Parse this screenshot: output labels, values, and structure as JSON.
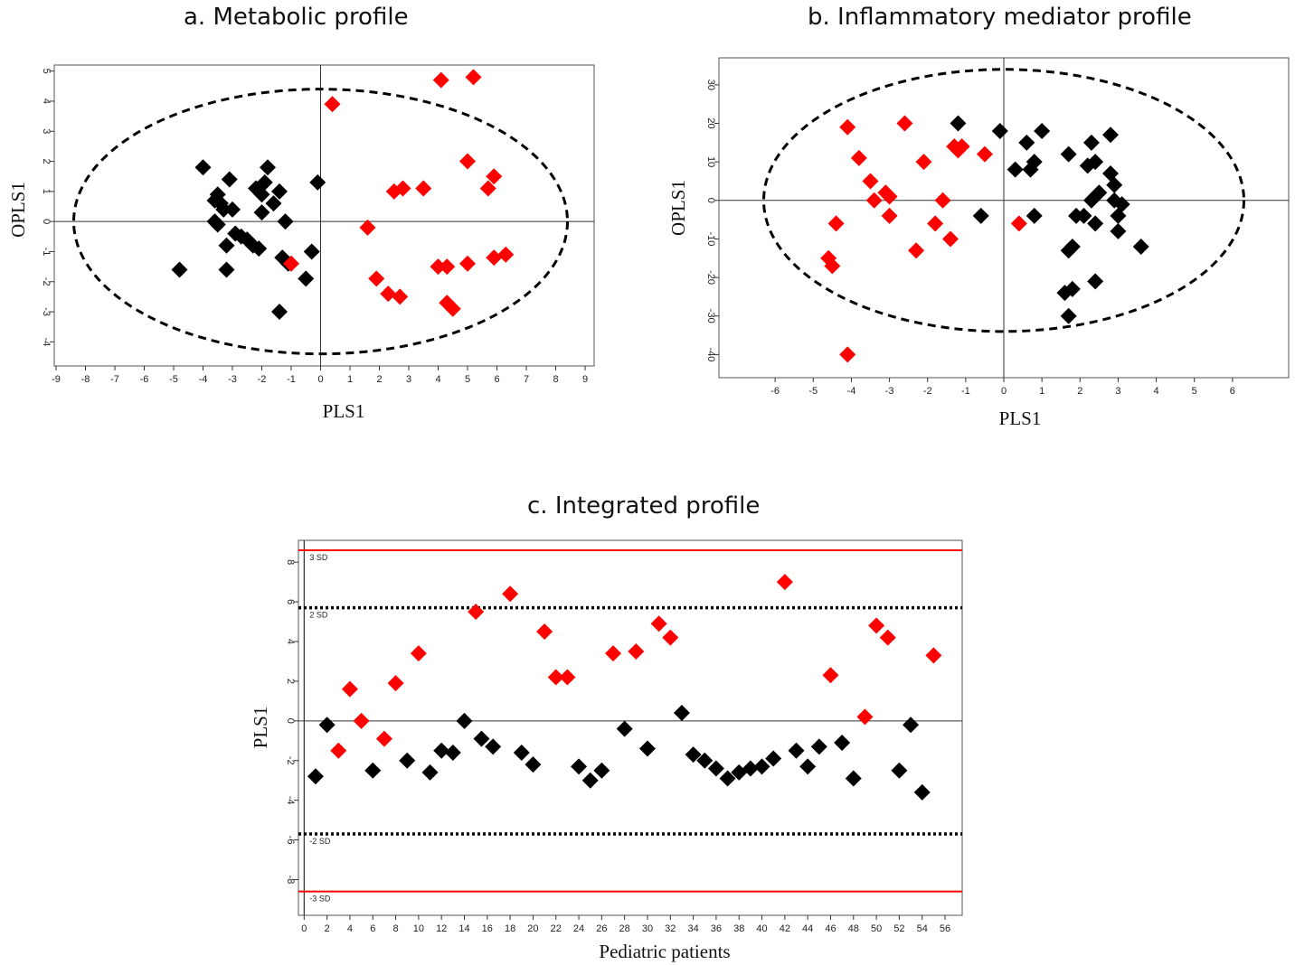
{
  "chart_data": [
    {
      "type": "scatter",
      "title": "a. Metabolic profile",
      "xlabel": "PLS1",
      "ylabel": "OPLS1",
      "xlim": [
        -9,
        9
      ],
      "ylim": [
        -4.8,
        5.2
      ],
      "xticks": [
        -9,
        -8,
        -7,
        -6,
        -5,
        -4,
        -3,
        -2,
        -1,
        0,
        1,
        2,
        3,
        4,
        5,
        6,
        7,
        8,
        9
      ],
      "yticks": [
        -4,
        -3,
        -2,
        -1,
        0,
        1,
        2,
        3,
        4,
        5
      ],
      "ellipse": {
        "rx": 8.4,
        "ry": 4.4
      },
      "colors": {
        "group_black": "#000000",
        "group_red": "#ff0000"
      },
      "series": [
        {
          "color": "black",
          "points": [
            [
              -4.8,
              -1.6
            ],
            [
              -4.0,
              1.8
            ],
            [
              -3.6,
              0.7
            ],
            [
              -3.5,
              0.9
            ],
            [
              -3.4,
              0.6
            ],
            [
              -3.3,
              0.4
            ],
            [
              -3.6,
              0.0
            ],
            [
              -3.5,
              -0.1
            ],
            [
              -3.1,
              1.4
            ],
            [
              -3.0,
              0.4
            ],
            [
              -2.9,
              -0.4
            ],
            [
              -3.2,
              -0.8
            ],
            [
              -3.2,
              -1.6
            ],
            [
              -2.7,
              -0.5
            ],
            [
              -2.5,
              -0.6
            ],
            [
              -2.3,
              -0.8
            ],
            [
              -2.2,
              1.1
            ],
            [
              -2.0,
              0.9
            ],
            [
              -2.0,
              0.3
            ],
            [
              -1.9,
              1.3
            ],
            [
              -1.8,
              1.8
            ],
            [
              -1.6,
              0.6
            ],
            [
              -1.4,
              1.0
            ],
            [
              -1.2,
              0.0
            ],
            [
              -1.3,
              -1.2
            ],
            [
              -1.1,
              -1.4
            ],
            [
              -1.4,
              -3.0
            ],
            [
              -0.5,
              -1.9
            ],
            [
              -0.3,
              -1.0
            ],
            [
              -0.1,
              1.3
            ],
            [
              -2.1,
              -0.9
            ]
          ]
        },
        {
          "color": "red",
          "points": [
            [
              0.4,
              3.9
            ],
            [
              4.1,
              4.7
            ],
            [
              5.2,
              4.8
            ],
            [
              1.6,
              -0.2
            ],
            [
              1.9,
              -1.9
            ],
            [
              2.3,
              -2.4
            ],
            [
              2.7,
              -2.5
            ],
            [
              2.5,
              1.0
            ],
            [
              2.8,
              1.1
            ],
            [
              3.5,
              1.1
            ],
            [
              4.0,
              -1.5
            ],
            [
              4.3,
              -1.5
            ],
            [
              4.3,
              -2.7
            ],
            [
              4.5,
              -2.9
            ],
            [
              5.0,
              2.0
            ],
            [
              5.0,
              -1.4
            ],
            [
              5.7,
              1.1
            ],
            [
              5.9,
              1.5
            ],
            [
              5.9,
              -1.2
            ],
            [
              6.3,
              -1.1
            ],
            [
              -1.0,
              -1.4
            ]
          ]
        }
      ]
    },
    {
      "type": "scatter",
      "title": "b. Inflammatory mediator profile",
      "xlabel": "PLS1",
      "ylabel": "OPLS1",
      "xlim": [
        -7,
        7
      ],
      "ylim": [
        -46,
        37
      ],
      "xticks": [
        -6,
        -5,
        -4,
        -3,
        -2,
        -1,
        0,
        1,
        2,
        3,
        4,
        5,
        6
      ],
      "yticks": [
        -40,
        -30,
        -20,
        -10,
        0,
        10,
        20,
        30
      ],
      "ellipse": {
        "rx": 6.3,
        "ry": 34
      },
      "colors": {
        "group_black": "#000000",
        "group_red": "#ff0000"
      },
      "series": [
        {
          "color": "black",
          "points": [
            [
              -1.2,
              20
            ],
            [
              -0.1,
              18
            ],
            [
              0.3,
              8
            ],
            [
              0.6,
              15
            ],
            [
              0.7,
              8
            ],
            [
              0.8,
              10
            ],
            [
              1.0,
              18
            ],
            [
              0.8,
              -4
            ],
            [
              -0.6,
              -4
            ],
            [
              1.7,
              12
            ],
            [
              1.7,
              -13
            ],
            [
              1.8,
              -12
            ],
            [
              1.9,
              -4
            ],
            [
              1.8,
              -23
            ],
            [
              1.6,
              -24
            ],
            [
              1.7,
              -30
            ],
            [
              2.1,
              -4
            ],
            [
              2.2,
              9
            ],
            [
              2.3,
              15
            ],
            [
              2.4,
              10
            ],
            [
              2.3,
              0
            ],
            [
              2.4,
              -6
            ],
            [
              2.5,
              2
            ],
            [
              2.4,
              -21
            ],
            [
              2.8,
              17
            ],
            [
              2.8,
              7
            ],
            [
              2.9,
              4
            ],
            [
              2.9,
              0
            ],
            [
              3.0,
              -4
            ],
            [
              3.0,
              -8
            ],
            [
              3.1,
              -1
            ],
            [
              3.6,
              -12
            ]
          ]
        },
        {
          "color": "red",
          "points": [
            [
              -4.1,
              19
            ],
            [
              -3.8,
              11
            ],
            [
              -3.5,
              5
            ],
            [
              -3.4,
              0
            ],
            [
              -3.1,
              2
            ],
            [
              -3.0,
              1
            ],
            [
              -3.0,
              -4
            ],
            [
              -2.6,
              20
            ],
            [
              -2.3,
              -13
            ],
            [
              -2.1,
              10
            ],
            [
              -1.8,
              -6
            ],
            [
              -1.6,
              0
            ],
            [
              -1.4,
              -10
            ],
            [
              -1.3,
              14
            ],
            [
              -1.1,
              14
            ],
            [
              -1.2,
              13
            ],
            [
              -0.5,
              12
            ],
            [
              0.4,
              -6
            ],
            [
              -4.4,
              -6
            ],
            [
              -4.6,
              -15
            ],
            [
              -4.5,
              -17
            ],
            [
              -4.1,
              -40
            ]
          ]
        }
      ]
    },
    {
      "type": "scatter",
      "title": "c. Integrated profile",
      "xlabel": "Pediatric patients",
      "ylabel": "PLS1",
      "xlim": [
        -0.5,
        57.5
      ],
      "ylim": [
        -9.8,
        9.1
      ],
      "xticks": [
        0,
        2,
        4,
        6,
        8,
        10,
        12,
        14,
        16,
        18,
        20,
        22,
        24,
        26,
        28,
        30,
        32,
        34,
        36,
        38,
        40,
        42,
        44,
        46,
        48,
        50,
        52,
        54,
        56
      ],
      "yticks": [
        -8,
        -6,
        -4,
        -2,
        0,
        2,
        4,
        6,
        8
      ],
      "reference_lines": [
        {
          "y": 8.6,
          "label": "3 SD",
          "style": "solid",
          "color": "#ff0000"
        },
        {
          "y": 5.7,
          "label": "2 SD",
          "style": "dotted",
          "color": "#000000"
        },
        {
          "y": -5.7,
          "label": "-2 SD",
          "style": "dotted",
          "color": "#000000"
        },
        {
          "y": -8.6,
          "label": "-3 SD",
          "style": "solid",
          "color": "#ff0000"
        }
      ],
      "colors": {
        "group_black": "#000000",
        "group_red": "#ff0000"
      },
      "series": [
        {
          "color": "black",
          "points": [
            [
              1,
              -2.8
            ],
            [
              2,
              -0.2
            ],
            [
              6,
              -2.5
            ],
            [
              9,
              -2.0
            ],
            [
              11,
              -2.6
            ],
            [
              12,
              -1.5
            ],
            [
              13,
              -1.6
            ],
            [
              14,
              0.0
            ],
            [
              15.5,
              -0.9
            ],
            [
              16.5,
              -1.3
            ],
            [
              19,
              -1.6
            ],
            [
              20,
              -2.2
            ],
            [
              24,
              -2.3
            ],
            [
              25,
              -3.0
            ],
            [
              26,
              -2.5
            ],
            [
              28,
              -0.4
            ],
            [
              30,
              -1.4
            ],
            [
              33,
              0.4
            ],
            [
              34,
              -1.7
            ],
            [
              35,
              -2.0
            ],
            [
              36,
              -2.4
            ],
            [
              37,
              -2.9
            ],
            [
              38,
              -2.6
            ],
            [
              39,
              -2.4
            ],
            [
              40,
              -2.3
            ],
            [
              41,
              -1.9
            ],
            [
              43,
              -1.5
            ],
            [
              44,
              -2.3
            ],
            [
              45,
              -1.3
            ],
            [
              47,
              -1.1
            ],
            [
              48,
              -2.9
            ],
            [
              52,
              -2.5
            ],
            [
              53,
              -0.2
            ],
            [
              54,
              -3.6
            ]
          ]
        },
        {
          "color": "red",
          "points": [
            [
              3,
              -1.5
            ],
            [
              4,
              1.6
            ],
            [
              5,
              0.0
            ],
            [
              7,
              -0.9
            ],
            [
              8,
              1.9
            ],
            [
              10,
              3.4
            ],
            [
              15,
              5.5
            ],
            [
              18,
              6.4
            ],
            [
              21,
              4.5
            ],
            [
              22,
              2.2
            ],
            [
              23,
              2.2
            ],
            [
              27,
              3.4
            ],
            [
              29,
              3.5
            ],
            [
              31,
              4.9
            ],
            [
              32,
              4.2
            ],
            [
              42,
              7.0
            ],
            [
              46,
              2.3
            ],
            [
              49,
              0.2
            ],
            [
              50,
              4.8
            ],
            [
              51,
              4.2
            ],
            [
              55,
              3.3
            ]
          ]
        }
      ]
    }
  ]
}
